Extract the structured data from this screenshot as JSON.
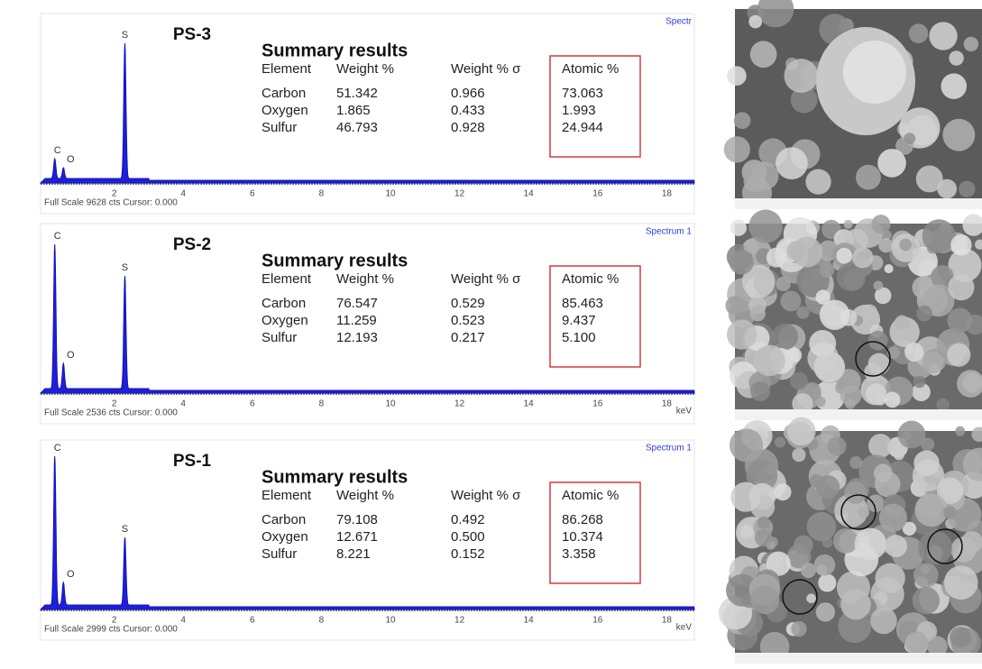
{
  "panels": [
    {
      "label": "PS-3",
      "spectrum_label": "Spectr",
      "footer": "Full Scale 9628 cts Cursor: 0.000",
      "peaks": [
        "S",
        "C",
        "O"
      ],
      "xticks": [
        "2",
        "4",
        "6",
        "8",
        "10",
        "12",
        "14",
        "16",
        "18"
      ],
      "table": {
        "title": "Summary results",
        "header": [
          "Element",
          "Weight %",
          "Weight % σ",
          "Atomic %"
        ],
        "rows": [
          [
            "Carbon",
            "51.342",
            "0.966",
            "73.063"
          ],
          [
            "Oxygen",
            "1.865",
            "0.433",
            "1.993"
          ],
          [
            "Sulfur",
            "46.793",
            "0.928",
            "24.944"
          ]
        ]
      }
    },
    {
      "label": "PS-2",
      "spectrum_label": "Spectrum 1",
      "footer": "Full Scale 2536 cts Cursor: 0.000",
      "unit": "keV",
      "peaks": [
        "C",
        "S",
        "O"
      ],
      "xticks": [
        "2",
        "4",
        "6",
        "8",
        "10",
        "12",
        "14",
        "16",
        "18"
      ],
      "table": {
        "title": "Summary results",
        "header": [
          "Element",
          "Weight %",
          "Weight % σ",
          "Atomic %"
        ],
        "rows": [
          [
            "Carbon",
            "76.547",
            "0.529",
            "85.463"
          ],
          [
            "Oxygen",
            "11.259",
            "0.523",
            "9.437"
          ],
          [
            "Sulfur",
            "12.193",
            "0.217",
            "5.100"
          ]
        ]
      }
    },
    {
      "label": "PS-1",
      "spectrum_label": "Spectrum 1",
      "footer": "Full Scale 2999 cts Cursor: 0.000",
      "unit": "keV",
      "peaks": [
        "C",
        "S",
        "O"
      ],
      "xticks": [
        "2",
        "4",
        "6",
        "8",
        "10",
        "12",
        "14",
        "16",
        "18"
      ],
      "table": {
        "title": "Summary results",
        "header": [
          "Element",
          "Weight %",
          "Weight % σ",
          "Atomic %"
        ],
        "rows": [
          [
            "Carbon",
            "79.108",
            "0.492",
            "86.268"
          ],
          [
            "Oxygen",
            "12.671",
            "0.500",
            "10.374"
          ],
          [
            "Sulfur",
            "8.221",
            "0.152",
            "3.358"
          ]
        ]
      }
    }
  ]
}
